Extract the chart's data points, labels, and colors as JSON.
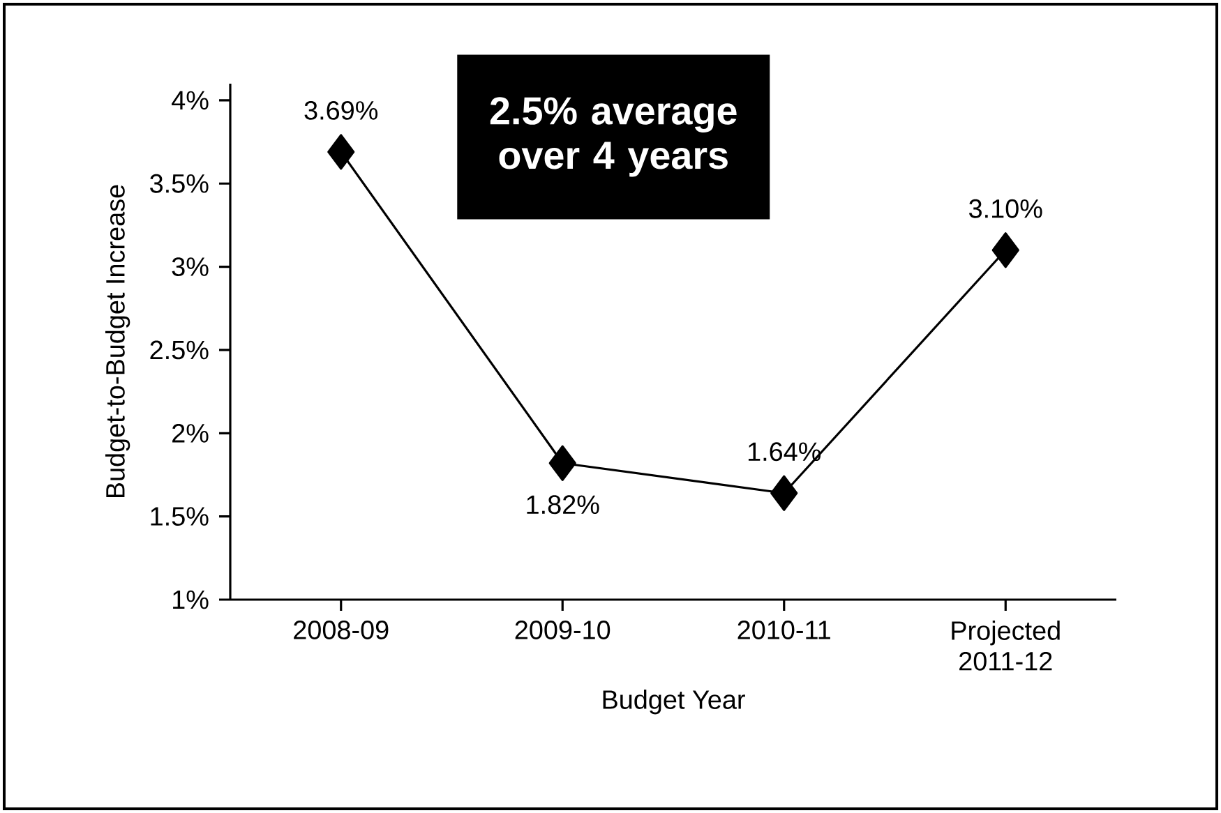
{
  "chart_data": {
    "type": "line",
    "xlabel": "Budget Year",
    "ylabel": "Budget-to-Budget Increase",
    "categories": [
      "2008-09",
      "2009-10",
      "2010-11",
      "Projected 2011-12"
    ],
    "series": [
      {
        "color": "#000000",
        "values": [
          3.69,
          1.82,
          1.64,
          3.1
        ]
      }
    ],
    "value_labels": [
      "3.69%",
      "1.82%",
      "1.64%",
      "3.10%"
    ],
    "ylim": [
      1,
      4.1
    ],
    "yticks": [
      {
        "value": 1,
        "label": "1%"
      },
      {
        "value": 1.5,
        "label": "1.5%"
      },
      {
        "value": 2,
        "label": "2%"
      },
      {
        "value": 2.5,
        "label": "2.5%"
      },
      {
        "value": 3,
        "label": "3%"
      },
      {
        "value": 3.5,
        "label": "3.5%"
      },
      {
        "value": 4,
        "label": "4%"
      }
    ],
    "annotations": [
      "2.5% average over 4 years"
    ],
    "marker": "diamond",
    "line_style": "solid",
    "grid": false
  }
}
